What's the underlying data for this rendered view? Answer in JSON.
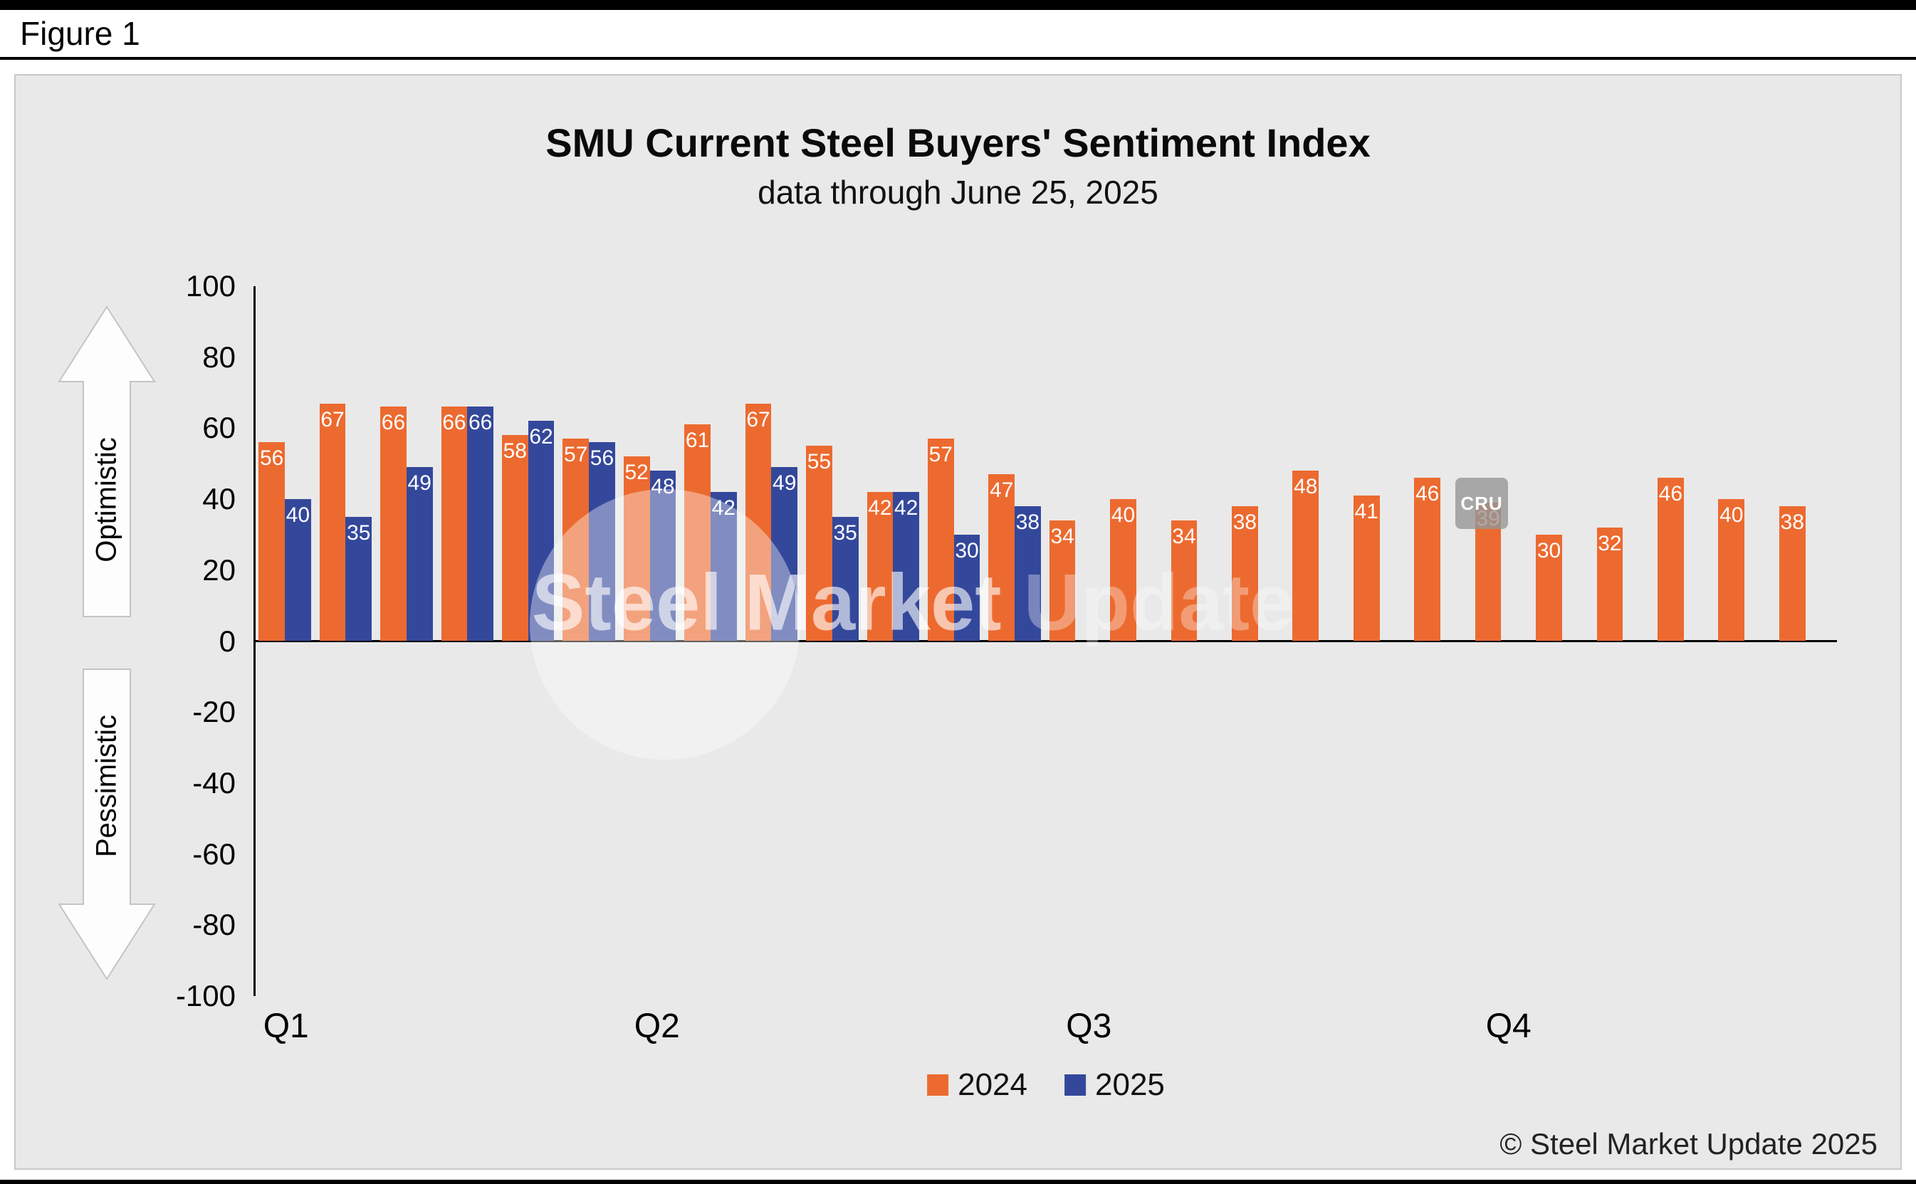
{
  "figure": {
    "label": "Figure 1"
  },
  "chart": {
    "title": "SMU Current Steel Buyers' Sentiment Index",
    "subtitle": "data through June 25, 2025"
  },
  "axis": {
    "optimistic_label": "Optimistic",
    "pessimistic_label": "Pessimistic"
  },
  "watermark": {
    "text_primary": "Steel Market",
    "text_secondary": "Update",
    "cru": "CRU"
  },
  "footer": {
    "copyright": "© Steel Market Update 2025"
  },
  "chart_data": {
    "type": "bar",
    "title": "SMU Current Steel Buyers' Sentiment Index",
    "subtitle": "data through June 25, 2025",
    "ylim": [
      -100,
      100
    ],
    "y_tick_step": 20,
    "y_tick_labels": [
      100,
      80,
      60,
      40,
      20,
      0,
      -20,
      -40,
      -60,
      -80,
      -100
    ],
    "x_tick_labels": [
      "Q1",
      "Q2",
      "Q3",
      "Q4"
    ],
    "x_tick_group_centers": [
      1.0,
      7.1,
      14.2,
      21.1
    ],
    "groups": 26,
    "grid": false,
    "legend_position": "bottom",
    "positive_region_label": "Optimistic",
    "negative_region_label": "Pessimistic",
    "series": [
      {
        "name": "2024",
        "color": "#EC6A2F",
        "values": [
          56,
          67,
          66,
          66,
          58,
          57,
          52,
          61,
          67,
          55,
          42,
          57,
          47,
          34,
          40,
          34,
          38,
          48,
          41,
          46,
          39,
          30,
          32,
          46,
          40,
          38
        ]
      },
      {
        "name": "2025",
        "color": "#34489B",
        "values": [
          40,
          35,
          49,
          66,
          62,
          56,
          48,
          42,
          49,
          35,
          42,
          30,
          38
        ]
      }
    ]
  }
}
